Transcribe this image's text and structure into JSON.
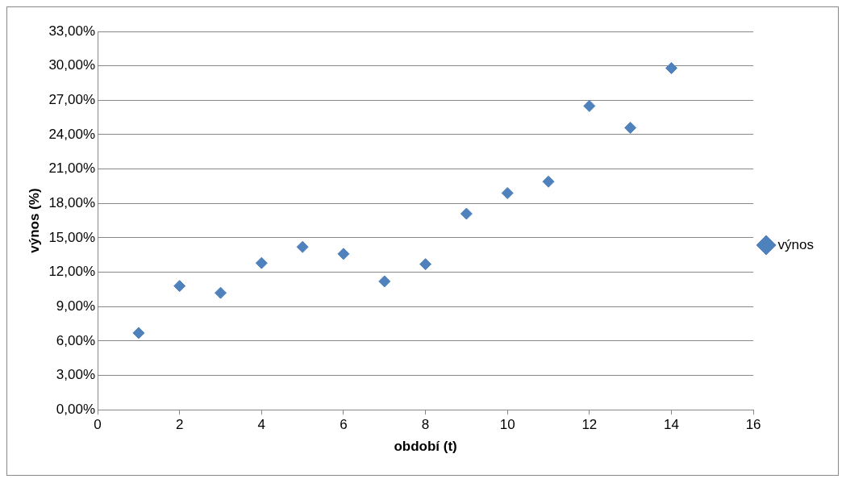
{
  "chart_data": {
    "type": "scatter",
    "xlabel": "období (t)",
    "ylabel": "výnos (%)",
    "x": [
      1,
      2,
      3,
      4,
      5,
      6,
      7,
      8,
      9,
      10,
      11,
      12,
      13,
      14
    ],
    "series": [
      {
        "name": "výnos",
        "color": "#4f81bd",
        "values": [
          6.7,
          10.8,
          10.2,
          12.8,
          14.2,
          13.6,
          11.2,
          12.7,
          17.1,
          18.9,
          19.9,
          26.5,
          24.6,
          29.8
        ]
      }
    ],
    "xlim": [
      0,
      16
    ],
    "xticks": [
      0,
      2,
      4,
      6,
      8,
      10,
      12,
      14,
      16
    ],
    "ylim": [
      0,
      33
    ],
    "yticks": [
      {
        "value": 0,
        "label": "0,00%"
      },
      {
        "value": 3,
        "label": "3,00%"
      },
      {
        "value": 6,
        "label": "6,00%"
      },
      {
        "value": 9,
        "label": "9,00%"
      },
      {
        "value": 12,
        "label": "12,00%"
      },
      {
        "value": 15,
        "label": "15,00%"
      },
      {
        "value": 18,
        "label": "18,00%"
      },
      {
        "value": 21,
        "label": "21,00%"
      },
      {
        "value": 24,
        "label": "24,00%"
      },
      {
        "value": 27,
        "label": "27,00%"
      },
      {
        "value": 30,
        "label": "30,00%"
      },
      {
        "value": 33,
        "label": "33,00%"
      }
    ],
    "grid": "y",
    "legend": "right",
    "marker": "diamond"
  }
}
